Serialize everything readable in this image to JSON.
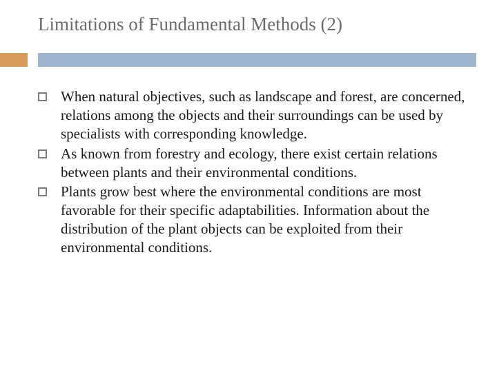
{
  "slide": {
    "title": "Limitations of Fundamental Methods (2)",
    "title_color": "#6b6b6b",
    "title_fontsize": 27,
    "accent_color": "#d89a5a",
    "bar_color": "#9fb4cf",
    "background_color": "#ffffff",
    "body_fontsize": 21,
    "body_color": "#1a1a1a",
    "bullet_border_color": "#7a7a7a",
    "bullets": [
      "When natural objectives, such as landscape and forest, are concerned, relations among the objects and their surroundings can be used by specialists with corresponding knowledge.",
      "As known from forestry and ecology, there exist certain relations between plants and their environmental conditions.",
      "Plants grow best where the environmental conditions are most favorable for their specific adaptabilities. Information about the distribution of the plant objects can be exploited from their environmental conditions."
    ]
  }
}
